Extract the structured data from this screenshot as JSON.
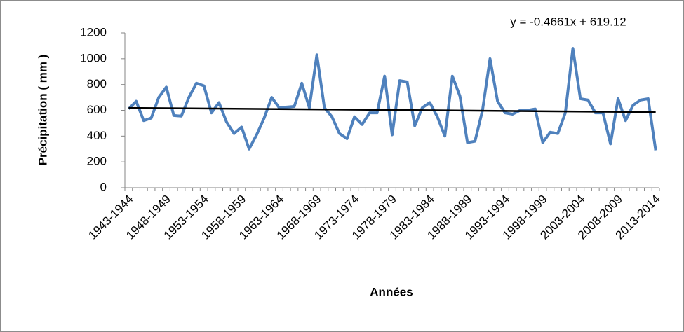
{
  "chart_data": {
    "type": "line",
    "x_label": "Années",
    "y_label": "Précipitation ( mm )",
    "categories": [
      "1943-1944",
      null,
      null,
      null,
      null,
      "1948-1949",
      null,
      null,
      null,
      null,
      "1953-1954",
      null,
      null,
      null,
      null,
      "1958-1959",
      null,
      null,
      null,
      null,
      "1963-1964",
      null,
      null,
      null,
      null,
      "1968-1969",
      null,
      null,
      null,
      null,
      "1973-1974",
      null,
      null,
      null,
      null,
      "1978-1979",
      null,
      null,
      null,
      null,
      "1983-1984",
      null,
      null,
      null,
      null,
      "1988-1989",
      null,
      null,
      null,
      null,
      "1993-1994",
      null,
      null,
      null,
      null,
      "1998-1999",
      null,
      null,
      null,
      null,
      "2003-2004",
      null,
      null,
      null,
      null,
      "2008-2009",
      null,
      null,
      null,
      null,
      "2013-2014"
    ],
    "series": [
      {
        "color": "#4f81bd",
        "values": [
          610,
          670,
          520,
          540,
          700,
          780,
          560,
          555,
          700,
          810,
          790,
          580,
          660,
          510,
          420,
          470,
          300,
          410,
          540,
          700,
          620,
          625,
          630,
          810,
          620,
          1030,
          620,
          550,
          420,
          380,
          550,
          490,
          580,
          580,
          865,
          410,
          830,
          820,
          480,
          620,
          660,
          550,
          400,
          865,
          710,
          350,
          360,
          600,
          1000,
          670,
          580,
          570,
          600,
          600,
          610,
          350,
          430,
          420,
          580,
          1080,
          690,
          680,
          580,
          580,
          340,
          690,
          520,
          640,
          680,
          690,
          290
        ]
      }
    ],
    "trendline": {
      "slope": -0.4661,
      "intercept": 619.12,
      "color": "#000000",
      "label": "y = -0.4661x + 619.12"
    },
    "ylim": [
      0,
      1200
    ],
    "yticks": [
      0,
      200,
      400,
      600,
      800,
      1000,
      1200
    ],
    "grid": false
  }
}
